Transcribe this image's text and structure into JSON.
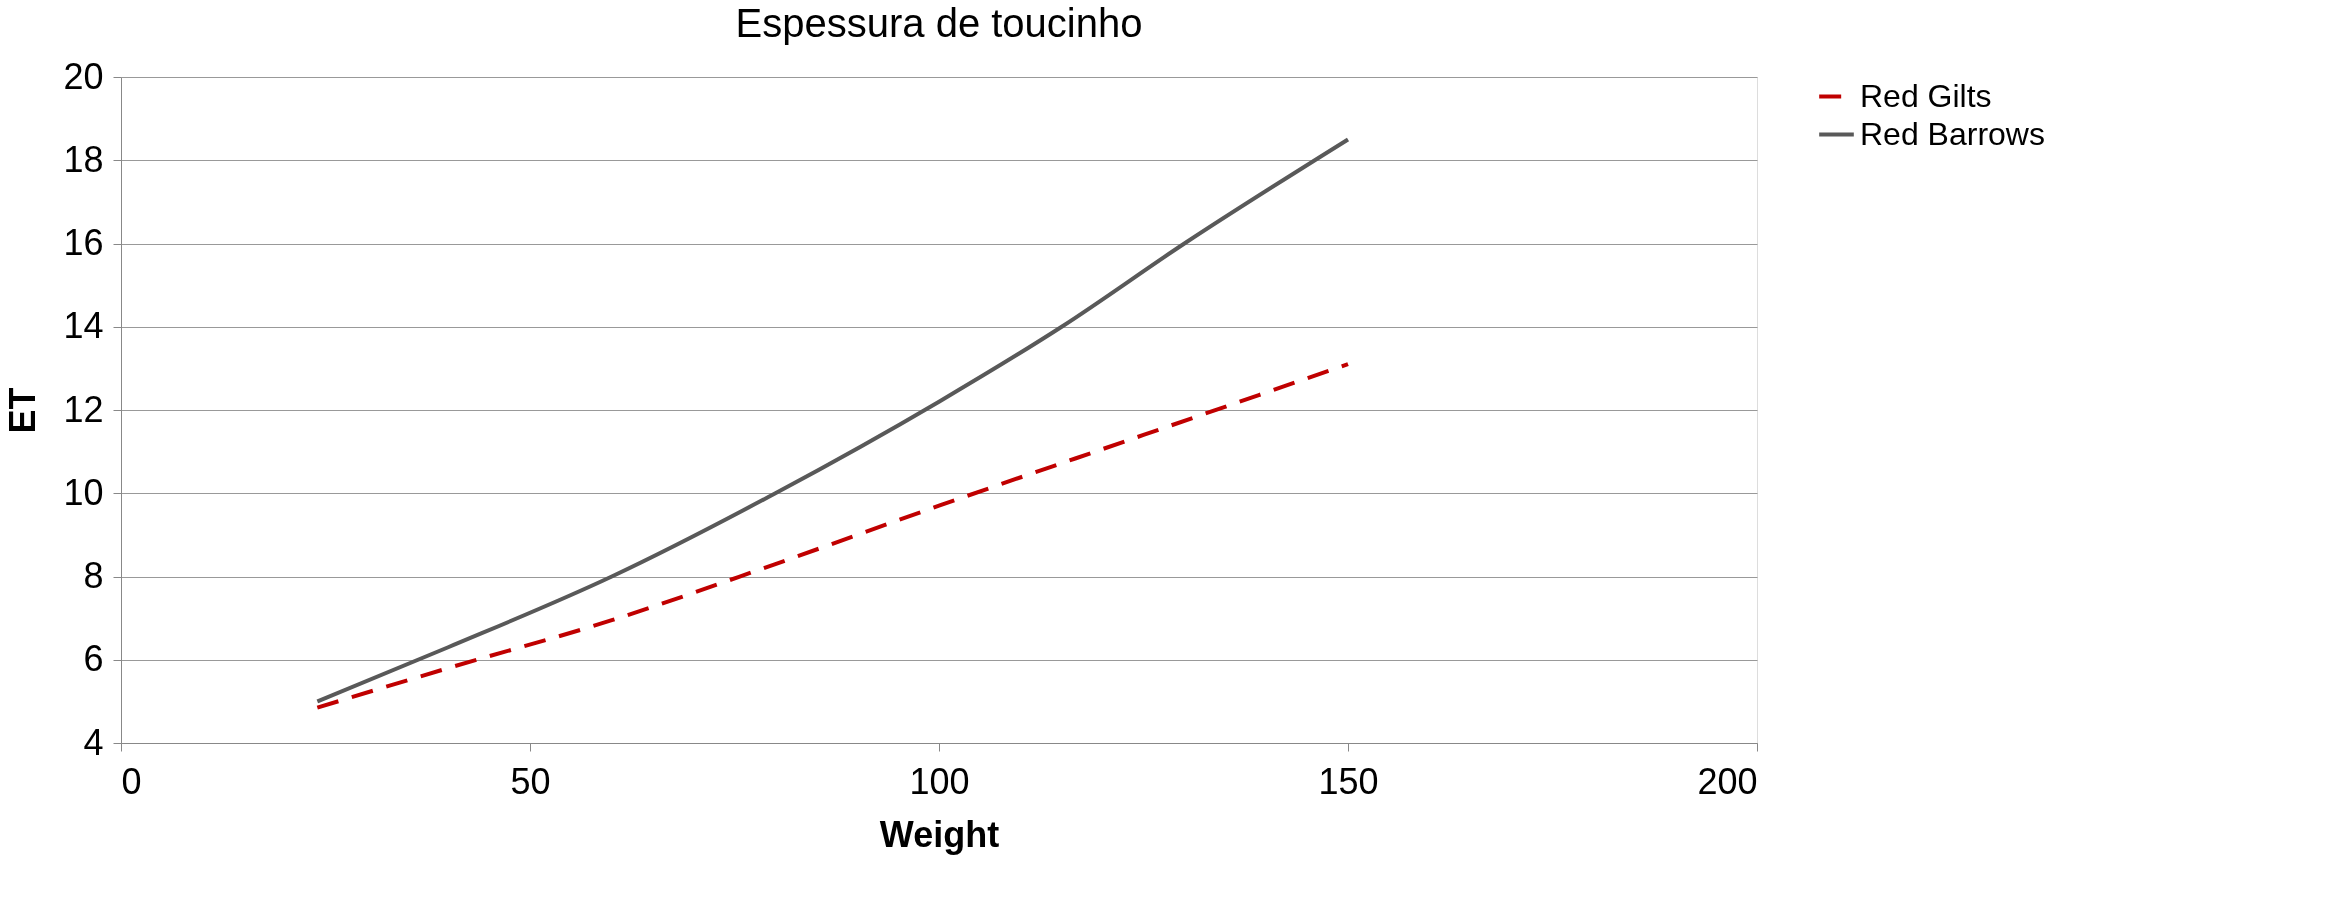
{
  "chart_data": {
    "type": "line",
    "title": "Espessura de toucinho",
    "xlabel": "Weight",
    "ylabel": "ET",
    "xlim": [
      0,
      200
    ],
    "xticks": [
      0,
      50,
      100,
      150,
      200
    ],
    "ylim": [
      4,
      20
    ],
    "yticks": [
      4,
      6,
      8,
      10,
      12,
      14,
      16,
      18,
      20
    ],
    "grid": "y",
    "legend": "right",
    "marker": "none",
    "series": [
      {
        "name": "Red Gilts",
        "color": "#c00000",
        "line_style": "dashed",
        "x": [
          24,
          40,
          60,
          80,
          100,
          125,
          150
        ],
        "values": [
          4.85,
          5.8,
          6.95,
          8.3,
          9.7,
          11.4,
          13.1
        ]
      },
      {
        "name": "Red Barrows",
        "color": "#595959",
        "line_style": "solid",
        "x": [
          24,
          40,
          60,
          80,
          100,
          115,
          130,
          150
        ],
        "values": [
          5.0,
          6.3,
          8.0,
          10.0,
          12.2,
          14.0,
          16.0,
          18.5
        ]
      }
    ]
  }
}
